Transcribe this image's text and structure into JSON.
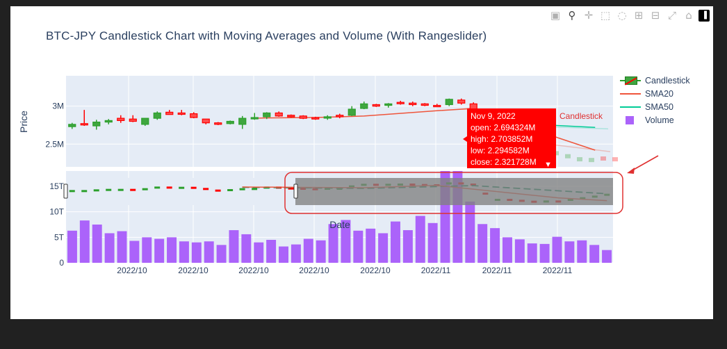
{
  "title": "BTC-JPY Candlestick Chart with Moving Averages and Volume (With Rangeslider)",
  "modebar": [
    "camera-icon",
    "zoom-icon",
    "pan-icon",
    "box-select-icon",
    "lasso-icon",
    "zoom-in-icon",
    "zoom-out-icon",
    "autoscale-icon",
    "reset-axes-icon",
    "plotly-logo-icon"
  ],
  "colors": {
    "up": "#2ca02c",
    "down": "#ff0000",
    "sma20": "#ef553b",
    "sma50": "#00cc96",
    "volume": "#ab63fa",
    "plot_bg": "#e5ecf6",
    "tooltip": "#ff0000",
    "annotation": "#e03030"
  },
  "chart_data": [
    {
      "type": "candlestick",
      "ylabel": "Price",
      "price_ticks": [
        "3M",
        "2.5M"
      ],
      "price_tick_values": [
        3000000,
        2500000
      ],
      "ylim": [
        2200000,
        3400000
      ],
      "candles": [
        [
          2730000,
          2780000,
          2700000,
          2760000
        ],
        [
          2770000,
          2950000,
          2740000,
          2760000
        ],
        [
          2740000,
          2820000,
          2690000,
          2790000
        ],
        [
          2790000,
          2830000,
          2760000,
          2810000
        ],
        [
          2840000,
          2880000,
          2780000,
          2810000
        ],
        [
          2830000,
          2880000,
          2790000,
          2800000
        ],
        [
          2760000,
          2840000,
          2740000,
          2840000
        ],
        [
          2840000,
          2930000,
          2820000,
          2910000
        ],
        [
          2920000,
          2950000,
          2890000,
          2890000
        ],
        [
          2910000,
          2950000,
          2880000,
          2900000
        ],
        [
          2900000,
          2920000,
          2840000,
          2850000
        ],
        [
          2830000,
          2830000,
          2760000,
          2780000
        ],
        [
          2780000,
          2790000,
          2750000,
          2760000
        ],
        [
          2770000,
          2810000,
          2760000,
          2800000
        ],
        [
          2760000,
          2870000,
          2700000,
          2840000
        ],
        [
          2840000,
          2910000,
          2820000,
          2850000
        ],
        [
          2860000,
          2920000,
          2830000,
          2910000
        ],
        [
          2910000,
          2930000,
          2860000,
          2870000
        ],
        [
          2880000,
          2890000,
          2850000,
          2860000
        ],
        [
          2870000,
          2880000,
          2830000,
          2840000
        ],
        [
          2850000,
          2860000,
          2820000,
          2830000
        ],
        [
          2860000,
          2880000,
          2820000,
          2860000
        ],
        [
          2880000,
          2900000,
          2840000,
          2860000
        ],
        [
          2880000,
          3000000,
          2870000,
          2960000
        ],
        [
          2970000,
          3060000,
          2960000,
          3030000
        ],
        [
          3020000,
          3030000,
          2990000,
          3000000
        ],
        [
          3010000,
          3040000,
          2980000,
          3030000
        ],
        [
          3050000,
          3070000,
          3020000,
          3040000
        ],
        [
          3040000,
          3060000,
          3000000,
          3020000
        ],
        [
          3030000,
          3040000,
          3000000,
          3010000
        ],
        [
          3010000,
          3030000,
          2990000,
          3000000
        ],
        [
          3020000,
          3100000,
          3000000,
          3090000
        ],
        [
          3080000,
          3100000,
          3020000,
          3040000
        ],
        [
          3030000,
          3050000,
          2610000,
          2650000
        ],
        [
          2694324,
          2703852,
          2294582,
          2321728
        ]
      ],
      "sma20": [
        [
          15,
          2840000
        ],
        [
          16,
          2845000
        ],
        [
          20,
          2850000
        ],
        [
          21,
          2855000
        ],
        [
          24,
          2870000
        ],
        [
          30,
          2940000
        ],
        [
          33,
          2970000
        ],
        [
          36,
          2820000
        ],
        [
          40,
          2580000
        ],
        [
          43,
          2420000
        ]
      ],
      "sma50": [
        [
          38,
          2760000
        ],
        [
          43,
          2720000
        ]
      ],
      "faded_tail_close": [
        2380000,
        2340000,
        2300000,
        2290000,
        2310000,
        2300000
      ],
      "tooltip": {
        "date": "Nov 9, 2022",
        "open": "open: 2.694324M",
        "high": "high: 2.703852M",
        "low": "low: 2.294582M",
        "close": "close: 2.321728M"
      },
      "annotation": "Candlestick"
    },
    {
      "type": "bar",
      "xlabel": "Date",
      "volume_ticks": [
        "15T",
        "10T",
        "5T",
        "0"
      ],
      "volume_tick_values": [
        15,
        10,
        5,
        0
      ],
      "ylim": [
        0,
        18
      ],
      "x_ticks": [
        "2022/10",
        "2022/10",
        "2022/10",
        "2022/10",
        "2022/10",
        "2022/11",
        "2022/11",
        "2022/11"
      ],
      "values": [
        6.3,
        8.3,
        7.5,
        5.8,
        6.2,
        4.3,
        5.0,
        4.7,
        5.0,
        4.2,
        4.0,
        4.2,
        3.5,
        6.4,
        5.6,
        4.0,
        4.5,
        3.2,
        3.6,
        4.7,
        4.4,
        7.6,
        8.4,
        6.3,
        6.7,
        5.8,
        8.1,
        6.4,
        9.2,
        7.8,
        18.0,
        18.0,
        12.0,
        7.6,
        6.8,
        5.0,
        4.6,
        3.8,
        3.7,
        5.1,
        4.2,
        4.4,
        3.5,
        2.5
      ]
    }
  ],
  "legend": [
    {
      "label": "Candlestick",
      "kind": "candle"
    },
    {
      "label": "SMA20",
      "kind": "line",
      "color": "#ef553b"
    },
    {
      "label": "SMA50",
      "kind": "line",
      "color": "#00cc96"
    },
    {
      "label": "Volume",
      "kind": "box",
      "color": "#ab63fa"
    }
  ]
}
